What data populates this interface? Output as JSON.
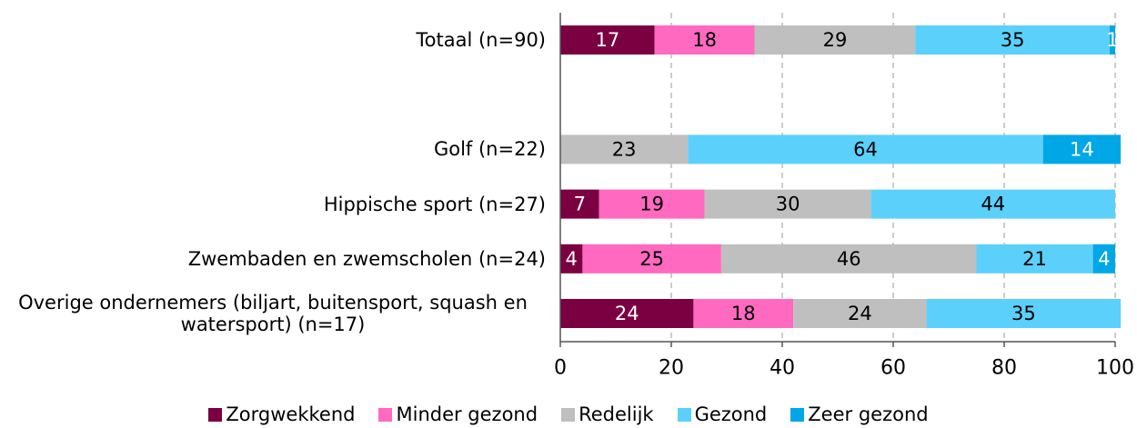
{
  "chart_data": {
    "type": "stacked_bar_horizontal",
    "categories": [
      "Totaal (n=90)",
      null,
      "Golf (n=22)",
      "Hippische sport (n=27)",
      "Zwembaden en zwemscholen (n=24)",
      "Overige ondernemers (biljart, buitensport, squash en watersport) (n=17)"
    ],
    "series": [
      {
        "name": "Zorgwekkend",
        "color": "#7b0041",
        "values": [
          17,
          null,
          null,
          7,
          4,
          24
        ]
      },
      {
        "name": "Minder gezond",
        "color": "#ff69c0",
        "values": [
          18,
          null,
          null,
          19,
          25,
          18
        ]
      },
      {
        "name": "Redelijk",
        "color": "#bfbfbf",
        "values": [
          29,
          null,
          23,
          30,
          46,
          24
        ]
      },
      {
        "name": "Gezond",
        "color": "#5bd0fb",
        "values": [
          35,
          null,
          64,
          44,
          21,
          35
        ]
      },
      {
        "name": "Zeer gezond",
        "color": "#00a7e6",
        "values": [
          1,
          null,
          14,
          null,
          4,
          null
        ]
      }
    ],
    "xlim": [
      0,
      100
    ],
    "xticks": [
      0,
      20,
      40,
      60,
      80,
      100
    ],
    "grid": true,
    "legend": "bottom"
  }
}
